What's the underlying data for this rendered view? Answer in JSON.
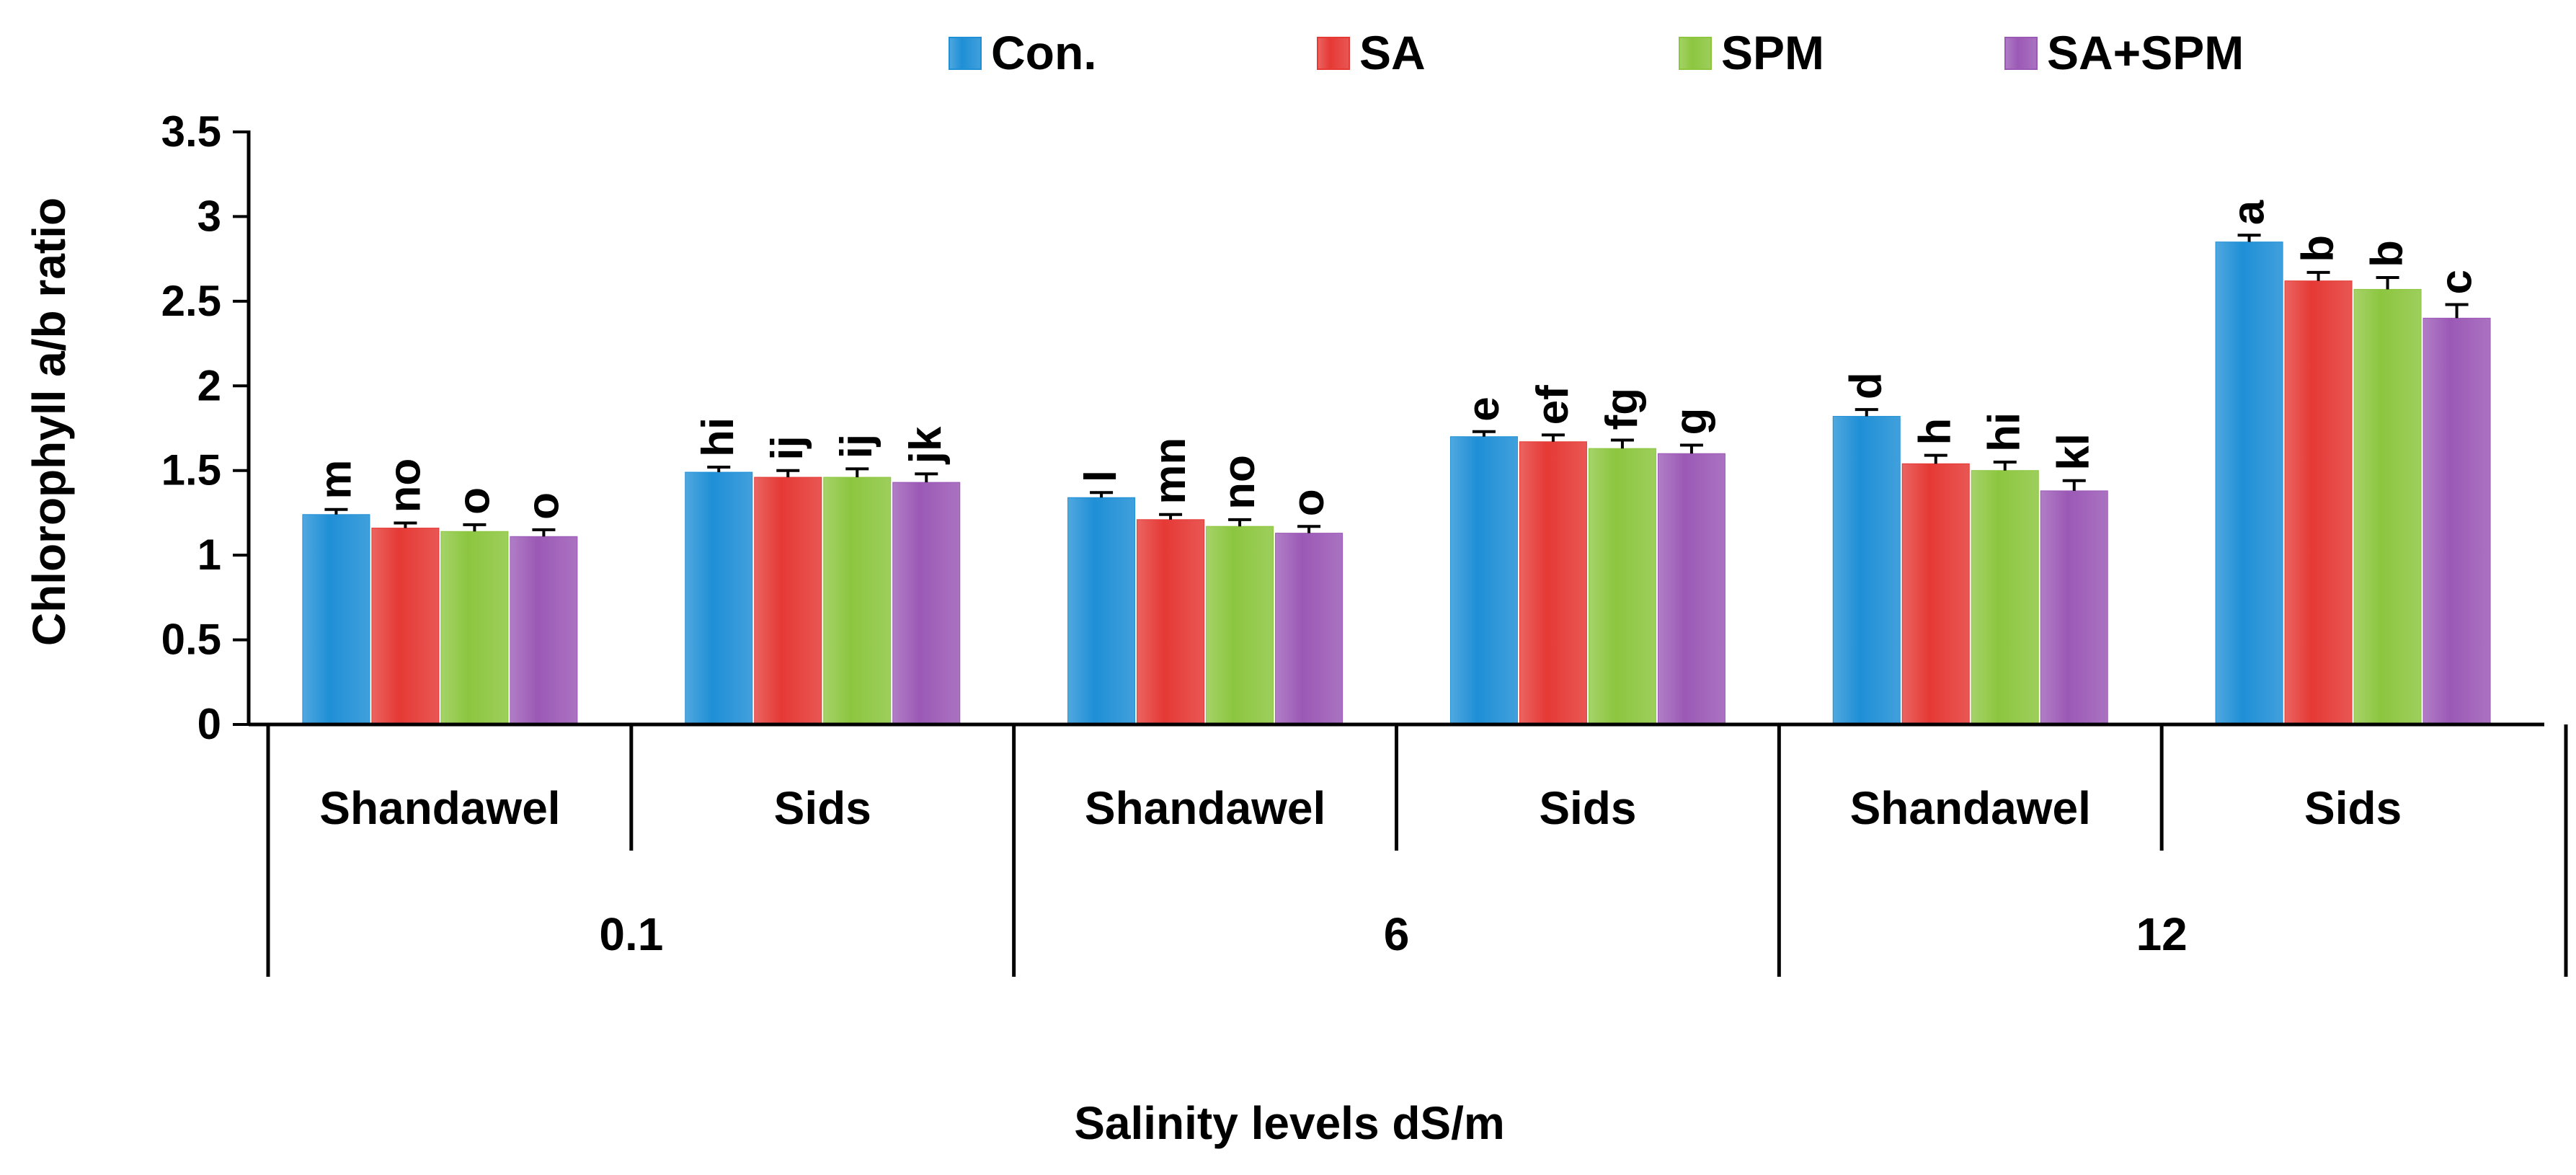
{
  "chart_data": {
    "type": "bar",
    "title": "",
    "ylabel": "Chlorophyll a/b ratio",
    "xlabel": "Salinity levels dS/m",
    "ylim": [
      0,
      3.5
    ],
    "yticks": [
      0,
      0.5,
      1,
      1.5,
      2,
      2.5,
      3,
      3.5
    ],
    "ytick_labels": [
      "0",
      "0.5",
      "1",
      "1.5",
      "2",
      "2.5",
      "3",
      "3.5"
    ],
    "grid": false,
    "legend_position": "top",
    "categories": [
      "Shandawel",
      "Sids",
      "Shandawel",
      "Sids",
      "Shandawel",
      "Sids"
    ],
    "groups": [
      "0.1",
      "6",
      "12"
    ],
    "series": [
      {
        "name": "Con.",
        "color": "#1f8fd6",
        "values": [
          1.24,
          1.49,
          1.34,
          1.7,
          1.82,
          2.85
        ],
        "errors": [
          0.03,
          0.03,
          0.03,
          0.03,
          0.04,
          0.04
        ],
        "letters": [
          "m",
          "hi",
          "l",
          "e",
          "d",
          "a"
        ]
      },
      {
        "name": "SA",
        "color": "#e53935",
        "values": [
          1.16,
          1.46,
          1.21,
          1.67,
          1.54,
          2.62
        ],
        "errors": [
          0.03,
          0.04,
          0.03,
          0.04,
          0.05,
          0.05
        ],
        "letters": [
          "no",
          "ij",
          "mn",
          "ef",
          "h",
          "b"
        ]
      },
      {
        "name": "SPM",
        "color": "#8cc63f",
        "values": [
          1.14,
          1.46,
          1.17,
          1.63,
          1.5,
          2.57
        ],
        "errors": [
          0.04,
          0.05,
          0.04,
          0.05,
          0.05,
          0.07
        ],
        "letters": [
          "o",
          "ij",
          "no",
          "fg",
          "hi",
          "b"
        ]
      },
      {
        "name": "SA+SPM",
        "color": "#9b59b6",
        "values": [
          1.11,
          1.43,
          1.13,
          1.6,
          1.38,
          2.4
        ],
        "errors": [
          0.04,
          0.05,
          0.04,
          0.05,
          0.06,
          0.08
        ],
        "letters": [
          "o",
          "jk",
          "o",
          "g",
          "kl",
          "c"
        ]
      }
    ]
  }
}
